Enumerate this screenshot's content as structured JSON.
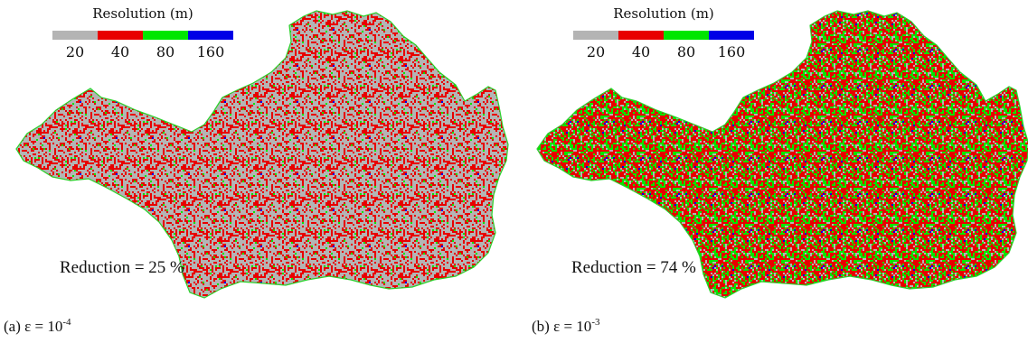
{
  "legend": {
    "title": "Resolution (m)",
    "items": [
      {
        "label": "20",
        "color": "#b4b4b4"
      },
      {
        "label": "40",
        "color": "#e80000"
      },
      {
        "label": "80",
        "color": "#00e600"
      },
      {
        "label": "160",
        "color": "#0000e6"
      }
    ]
  },
  "panels": [
    {
      "id": "a",
      "reduction_text": "Reduction = 25 %",
      "caption_prefix": "(a) ε = 10",
      "caption_exponent": "-4",
      "mix": {
        "20": 0.6,
        "40": 0.36,
        "80": 0.035,
        "160": 0.005
      }
    },
    {
      "id": "b",
      "reduction_text": "Reduction = 74 %",
      "caption_prefix": "(b) ε = 10",
      "caption_exponent": "-3",
      "mix": {
        "20": 0.12,
        "40": 0.56,
        "80": 0.3,
        "160": 0.02
      }
    }
  ]
}
